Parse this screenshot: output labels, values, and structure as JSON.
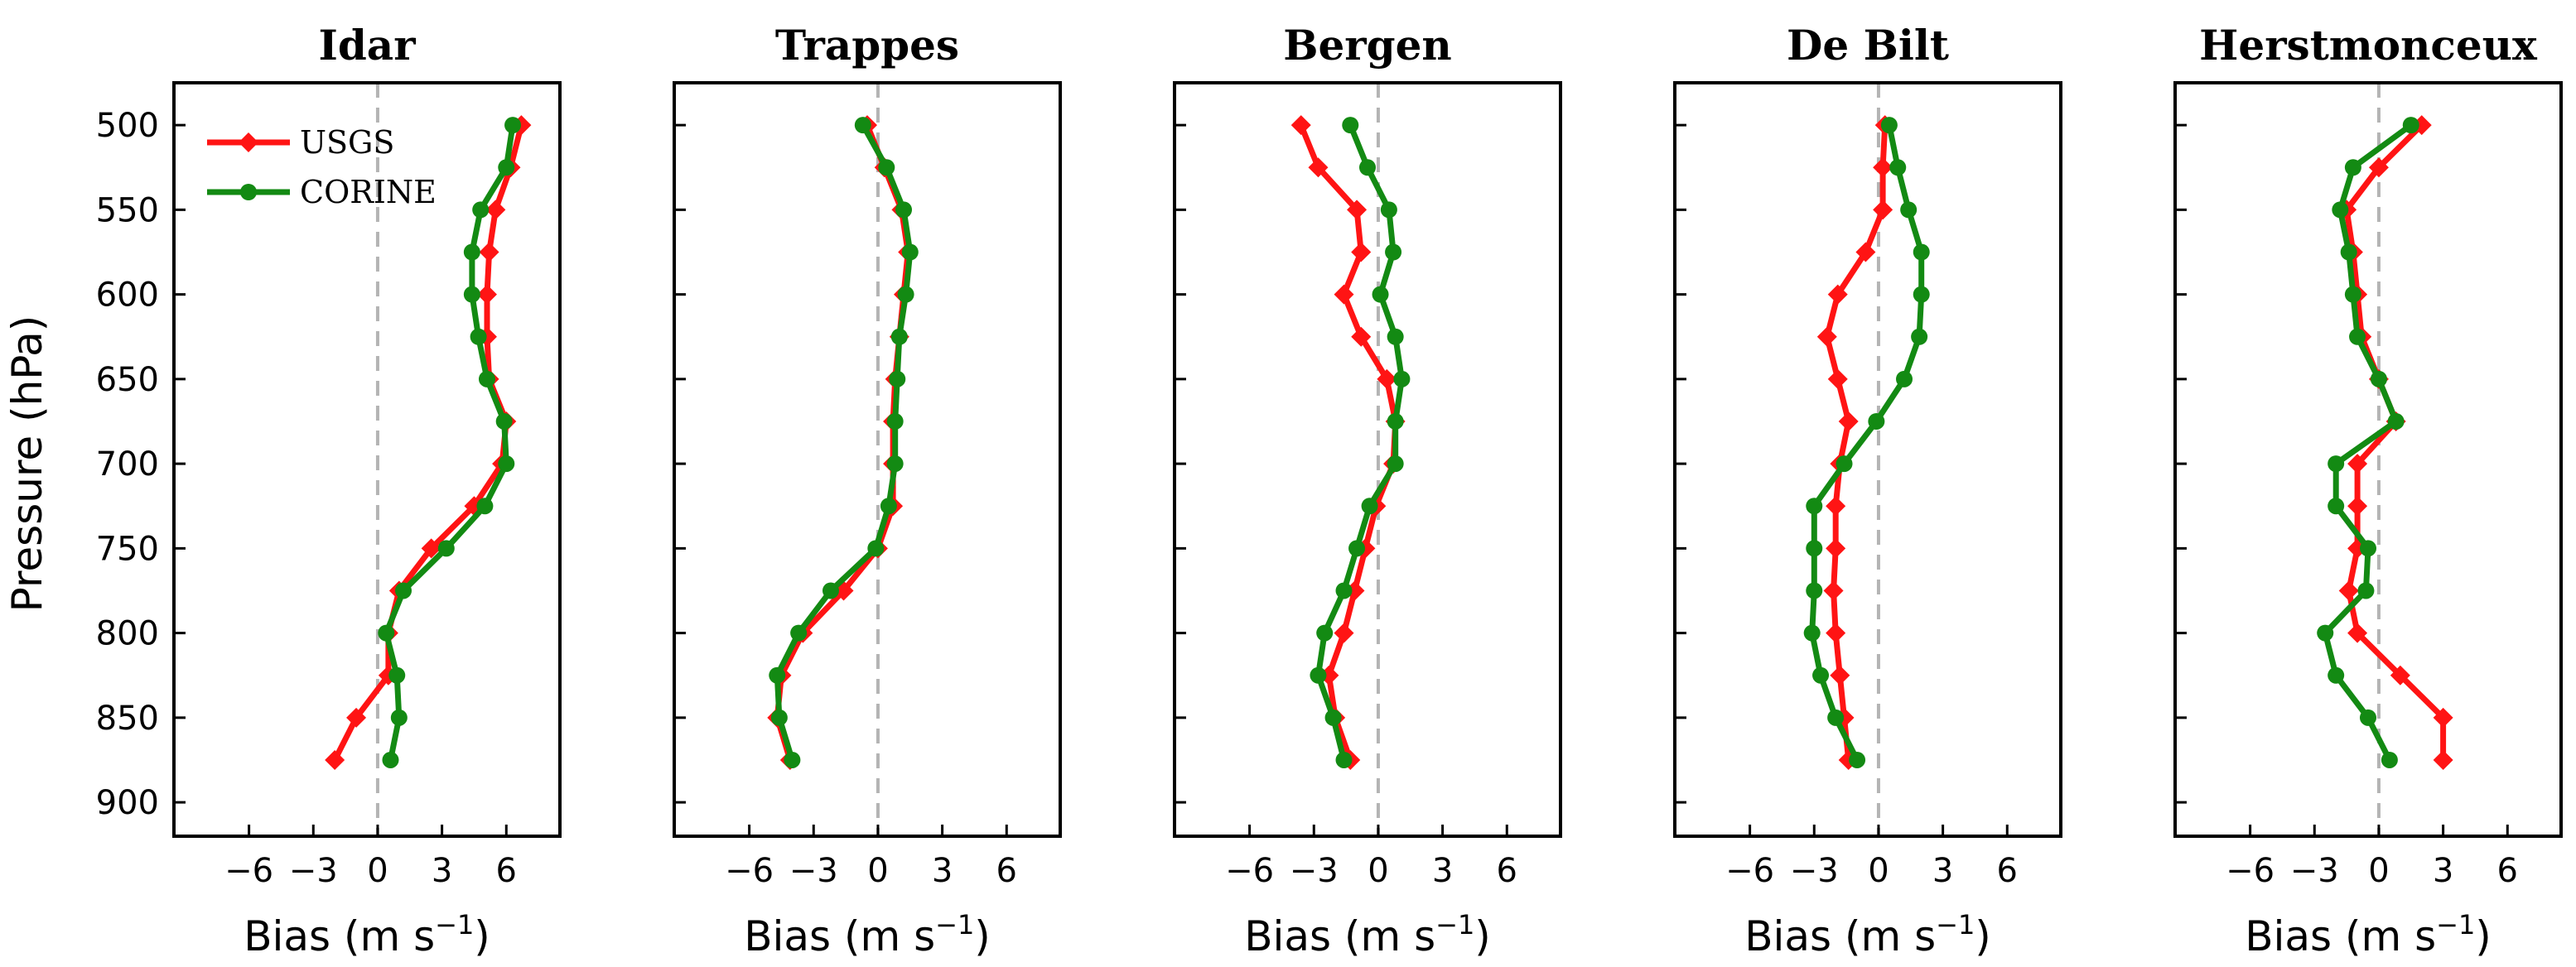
{
  "chart_data": {
    "type": "line",
    "ylabel": "Pressure (hPa)",
    "xlabel": "Bias (m s",
    "xlabel_sup": "−1",
    "xlabel_close": ")",
    "xlim": [
      -9.5,
      8.5
    ],
    "ylim": [
      920,
      475
    ],
    "xticks": [
      -6,
      -3,
      0,
      3,
      6
    ],
    "xtick_labels": [
      "−6",
      "−3",
      "0",
      "3",
      "6"
    ],
    "yticks": [
      500,
      550,
      600,
      650,
      700,
      750,
      800,
      850,
      900
    ],
    "pressure": [
      500,
      525,
      550,
      575,
      600,
      625,
      650,
      675,
      700,
      725,
      750,
      775,
      800,
      825,
      850,
      875
    ],
    "legend": [
      "USGS",
      "CORINE"
    ],
    "legend_location": "upper-left (first panel)",
    "colors": {
      "USGS": "#ff1414",
      "CORINE": "#138a13",
      "zero_line": "#b4b4b4"
    },
    "panels": [
      {
        "title": "Idar",
        "series": [
          {
            "name": "USGS",
            "values": [
              6.7,
              6.2,
              5.5,
              5.2,
              5.1,
              5.1,
              5.2,
              6.0,
              5.8,
              4.5,
              2.5,
              1.0,
              0.5,
              0.5,
              -1.0,
              -2.0
            ]
          },
          {
            "name": "CORINE",
            "values": [
              6.3,
              6.0,
              4.8,
              4.4,
              4.4,
              4.7,
              5.1,
              5.9,
              6.0,
              5.0,
              3.2,
              1.2,
              0.4,
              0.9,
              1.0,
              0.6
            ]
          }
        ]
      },
      {
        "title": "Trappes",
        "series": [
          {
            "name": "USGS",
            "values": [
              -0.5,
              0.3,
              1.1,
              1.4,
              1.2,
              1.0,
              0.8,
              0.7,
              0.7,
              0.7,
              0.0,
              -1.6,
              -3.5,
              -4.5,
              -4.7,
              -4.1
            ]
          },
          {
            "name": "CORINE",
            "values": [
              -0.7,
              0.4,
              1.2,
              1.5,
              1.3,
              1.0,
              0.9,
              0.8,
              0.8,
              0.5,
              -0.1,
              -2.2,
              -3.7,
              -4.7,
              -4.6,
              -4.0
            ]
          }
        ]
      },
      {
        "title": "Bergen",
        "series": [
          {
            "name": "USGS",
            "values": [
              -3.6,
              -2.8,
              -1.0,
              -0.8,
              -1.6,
              -0.8,
              0.4,
              0.8,
              0.7,
              -0.1,
              -0.6,
              -1.1,
              -1.6,
              -2.3,
              -2.0,
              -1.3
            ]
          },
          {
            "name": "CORINE",
            "values": [
              -1.3,
              -0.5,
              0.5,
              0.7,
              0.1,
              0.8,
              1.1,
              0.8,
              0.8,
              -0.4,
              -1.0,
              -1.6,
              -2.5,
              -2.8,
              -2.1,
              -1.6
            ]
          }
        ]
      },
      {
        "title": "De Bilt",
        "series": [
          {
            "name": "USGS",
            "values": [
              0.3,
              0.2,
              0.2,
              -0.6,
              -1.9,
              -2.4,
              -1.9,
              -1.4,
              -1.8,
              -2.0,
              -2.0,
              -2.1,
              -2.0,
              -1.8,
              -1.6,
              -1.4
            ]
          },
          {
            "name": "CORINE",
            "values": [
              0.5,
              0.9,
              1.4,
              2.0,
              2.0,
              1.9,
              1.2,
              -0.1,
              -1.6,
              -3.0,
              -3.0,
              -3.0,
              -3.1,
              -2.7,
              -2.0,
              -1.0
            ]
          }
        ]
      },
      {
        "title": "Herstmonceux",
        "series": [
          {
            "name": "USGS",
            "values": [
              2.0,
              0.0,
              -1.5,
              -1.2,
              -1.0,
              -0.8,
              0.0,
              0.8,
              -1.0,
              -1.0,
              -1.0,
              -1.4,
              -1.0,
              1.0,
              3.0,
              3.0
            ]
          },
          {
            "name": "CORINE",
            "values": [
              1.5,
              -1.2,
              -1.8,
              -1.4,
              -1.2,
              -1.0,
              0.0,
              0.8,
              -2.0,
              -2.0,
              -0.5,
              -0.6,
              -2.5,
              -2.0,
              -0.5,
              0.5
            ]
          }
        ]
      }
    ]
  }
}
